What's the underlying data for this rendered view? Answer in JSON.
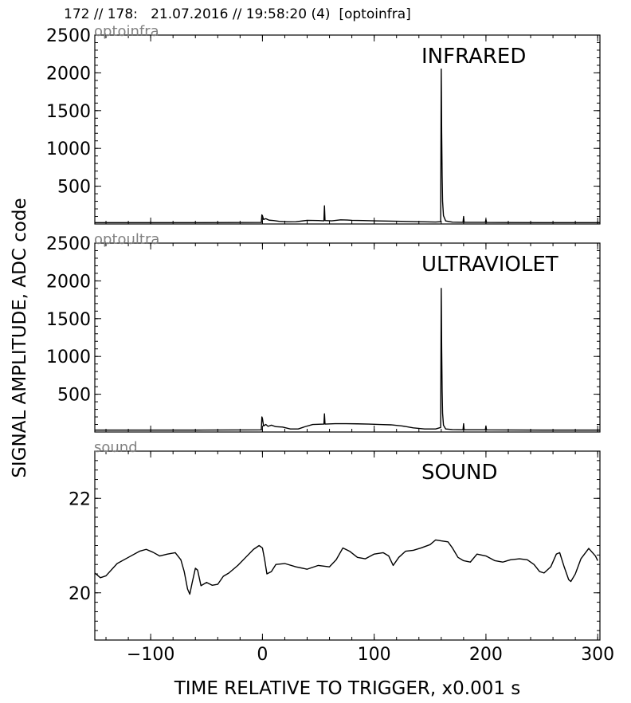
{
  "figure": {
    "title": "172 // 178:   21.07.2016 // 19:58:20 (4)  [optoinfra]",
    "ylabel": "SIGNAL AMPLITUDE,  ADC code",
    "xlabel": "TIME RELATIVE TO TRIGGER,   x0.001 s"
  },
  "chart_data": [
    {
      "type": "line",
      "channel": "optoinfra",
      "title": "INFRARED",
      "xlim": [
        -150,
        302
      ],
      "ylim": [
        0,
        2500
      ],
      "x_ticks": [
        -100,
        0,
        100,
        200,
        300
      ],
      "y_ticks": [
        500,
        1000,
        1500,
        2000,
        2500
      ],
      "x_tick_labels": [
        "−100",
        "0",
        "100",
        "200",
        "300"
      ],
      "y_tick_labels": [
        "500",
        "1000",
        "1500",
        "2000",
        "2500"
      ],
      "grid": false,
      "points": [
        [
          -150,
          18
        ],
        [
          -60,
          18
        ],
        [
          -1,
          20
        ],
        [
          -0.5,
          120
        ],
        [
          0,
          110
        ],
        [
          1,
          60
        ],
        [
          3,
          70
        ],
        [
          6,
          50
        ],
        [
          10,
          45
        ],
        [
          15,
          35
        ],
        [
          22,
          28
        ],
        [
          30,
          30
        ],
        [
          40,
          48
        ],
        [
          50,
          45
        ],
        [
          55,
          42
        ],
        [
          55.5,
          240
        ],
        [
          56,
          45
        ],
        [
          62,
          42
        ],
        [
          70,
          55
        ],
        [
          76,
          52
        ],
        [
          80,
          48
        ],
        [
          90,
          45
        ],
        [
          100,
          42
        ],
        [
          120,
          36
        ],
        [
          140,
          30
        ],
        [
          155,
          26
        ],
        [
          159.5,
          30
        ],
        [
          160,
          2050
        ],
        [
          160.4,
          1200
        ],
        [
          160.8,
          640
        ],
        [
          161.2,
          300
        ],
        [
          162,
          110
        ],
        [
          164,
          40
        ],
        [
          170,
          24
        ],
        [
          179.5,
          22
        ],
        [
          180,
          100
        ],
        [
          180.5,
          22
        ],
        [
          199.5,
          22
        ],
        [
          200,
          60
        ],
        [
          200.5,
          20
        ],
        [
          250,
          18
        ],
        [
          302,
          18
        ]
      ]
    },
    {
      "type": "line",
      "channel": "optoultra",
      "title": "ULTRAVIOLET",
      "xlim": [
        -150,
        302
      ],
      "ylim": [
        0,
        2500
      ],
      "x_ticks": [
        -100,
        0,
        100,
        200,
        300
      ],
      "y_ticks": [
        500,
        1000,
        1500,
        2000,
        2500
      ],
      "x_tick_labels": [
        "−100",
        "0",
        "100",
        "200",
        "300"
      ],
      "y_tick_labels": [
        "500",
        "1000",
        "1500",
        "2000",
        "2500"
      ],
      "grid": false,
      "points": [
        [
          -150,
          25
        ],
        [
          -60,
          25
        ],
        [
          -1,
          28
        ],
        [
          -0.5,
          200
        ],
        [
          0,
          180
        ],
        [
          1,
          80
        ],
        [
          3,
          100
        ],
        [
          5,
          75
        ],
        [
          8,
          90
        ],
        [
          12,
          70
        ],
        [
          18,
          65
        ],
        [
          25,
          40
        ],
        [
          32,
          40
        ],
        [
          38,
          70
        ],
        [
          45,
          100
        ],
        [
          55,
          105
        ],
        [
          55.5,
          240
        ],
        [
          56,
          105
        ],
        [
          65,
          110
        ],
        [
          75,
          110
        ],
        [
          85,
          108
        ],
        [
          95,
          105
        ],
        [
          105,
          100
        ],
        [
          115,
          95
        ],
        [
          125,
          80
        ],
        [
          135,
          55
        ],
        [
          145,
          40
        ],
        [
          155,
          40
        ],
        [
          159.5,
          60
        ],
        [
          160,
          1900
        ],
        [
          160.4,
          1100
        ],
        [
          160.8,
          550
        ],
        [
          161.2,
          250
        ],
        [
          162,
          90
        ],
        [
          164,
          40
        ],
        [
          170,
          32
        ],
        [
          179.5,
          30
        ],
        [
          180,
          110
        ],
        [
          180.5,
          30
        ],
        [
          199.5,
          30
        ],
        [
          200,
          80
        ],
        [
          200.5,
          28
        ],
        [
          250,
          25
        ],
        [
          302,
          25
        ]
      ]
    },
    {
      "type": "line",
      "channel": "sound",
      "title": "SOUND",
      "xlim": [
        -150,
        302
      ],
      "ylim": [
        19,
        23
      ],
      "x_ticks": [
        -100,
        0,
        100,
        200,
        300
      ],
      "y_ticks": [
        20,
        22
      ],
      "x_tick_labels": [
        "−100",
        "0",
        "100",
        "200",
        "300"
      ],
      "y_tick_labels": [
        "20",
        "22"
      ],
      "grid": false,
      "points": [
        [
          -150,
          20.42
        ],
        [
          -145,
          20.32
        ],
        [
          -140,
          20.36
        ],
        [
          -130,
          20.62
        ],
        [
          -120,
          20.75
        ],
        [
          -110,
          20.88
        ],
        [
          -104,
          20.92
        ],
        [
          -98,
          20.86
        ],
        [
          -92,
          20.78
        ],
        [
          -85,
          20.82
        ],
        [
          -78,
          20.85
        ],
        [
          -73,
          20.7
        ],
        [
          -70,
          20.45
        ],
        [
          -67,
          20.08
        ],
        [
          -65,
          19.97
        ],
        [
          -63,
          20.2
        ],
        [
          -60,
          20.52
        ],
        [
          -58,
          20.48
        ],
        [
          -55,
          20.15
        ],
        [
          -50,
          20.22
        ],
        [
          -45,
          20.16
        ],
        [
          -40,
          20.18
        ],
        [
          -35,
          20.35
        ],
        [
          -30,
          20.42
        ],
        [
          -22,
          20.58
        ],
        [
          -15,
          20.75
        ],
        [
          -8,
          20.92
        ],
        [
          -3,
          21.0
        ],
        [
          0,
          20.95
        ],
        [
          2,
          20.7
        ],
        [
          4,
          20.4
        ],
        [
          8,
          20.45
        ],
        [
          12,
          20.6
        ],
        [
          20,
          20.62
        ],
        [
          30,
          20.55
        ],
        [
          40,
          20.5
        ],
        [
          50,
          20.58
        ],
        [
          60,
          20.55
        ],
        [
          66,
          20.7
        ],
        [
          72,
          20.95
        ],
        [
          78,
          20.88
        ],
        [
          85,
          20.75
        ],
        [
          92,
          20.72
        ],
        [
          100,
          20.82
        ],
        [
          108,
          20.85
        ],
        [
          113,
          20.78
        ],
        [
          117,
          20.58
        ],
        [
          122,
          20.75
        ],
        [
          128,
          20.88
        ],
        [
          135,
          20.9
        ],
        [
          142,
          20.95
        ],
        [
          150,
          21.02
        ],
        [
          155,
          21.12
        ],
        [
          160,
          21.1
        ],
        [
          166,
          21.08
        ],
        [
          170,
          20.95
        ],
        [
          175,
          20.75
        ],
        [
          180,
          20.68
        ],
        [
          186,
          20.65
        ],
        [
          192,
          20.82
        ],
        [
          200,
          20.78
        ],
        [
          208,
          20.68
        ],
        [
          215,
          20.65
        ],
        [
          222,
          20.7
        ],
        [
          230,
          20.72
        ],
        [
          237,
          20.7
        ],
        [
          243,
          20.6
        ],
        [
          248,
          20.45
        ],
        [
          252,
          20.42
        ],
        [
          258,
          20.55
        ],
        [
          263,
          20.82
        ],
        [
          266,
          20.85
        ],
        [
          270,
          20.55
        ],
        [
          274,
          20.28
        ],
        [
          276,
          20.24
        ],
        [
          280,
          20.4
        ],
        [
          285,
          20.72
        ],
        [
          292,
          20.94
        ],
        [
          298,
          20.78
        ],
        [
          300,
          20.68
        ]
      ]
    }
  ]
}
